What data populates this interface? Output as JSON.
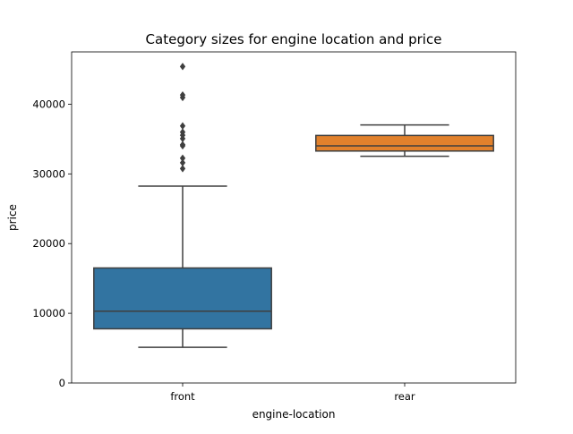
{
  "chart_data": {
    "type": "box",
    "title": "Category sizes for engine location and price",
    "xlabel": "engine-location",
    "ylabel": "price",
    "ylim": [
      0,
      47500
    ],
    "yticks": [
      0,
      10000,
      20000,
      30000,
      40000
    ],
    "ytick_labels": [
      "0",
      "10000",
      "20000",
      "30000",
      "40000"
    ],
    "categories": [
      "front",
      "rear"
    ],
    "grid": false,
    "boxes": [
      {
        "category": "front",
        "color": "#3274a1",
        "whisker_low": 5118,
        "q1": 7775,
        "median": 10295,
        "q3": 16503,
        "whisker_high": 28248,
        "outliers": [
          30760,
          31600,
          32250,
          34028,
          34184,
          35056,
          35550,
          36000,
          36880,
          40960,
          41315,
          45400
        ]
      },
      {
        "category": "rear",
        "color": "#e1812c",
        "whisker_low": 32528,
        "q1": 33278,
        "median": 34028,
        "q3": 35514,
        "whisker_high": 37028,
        "outliers": []
      }
    ]
  }
}
